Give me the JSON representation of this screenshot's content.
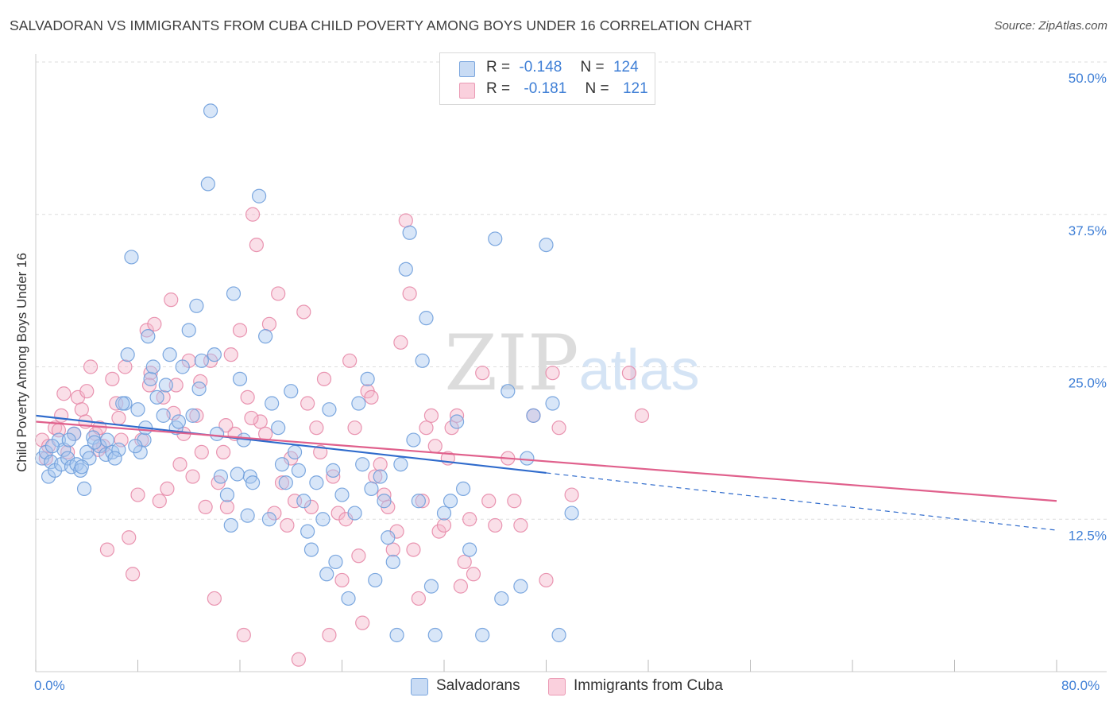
{
  "title": "SALVADORAN VS IMMIGRANTS FROM CUBA CHILD POVERTY AMONG BOYS UNDER 16 CORRELATION CHART",
  "source": "Source: ZipAtlas.com",
  "watermark": "ZIPatlas",
  "legend": {
    "rows": [
      {
        "r_label": "R =",
        "r_value": "-0.148",
        "n_label": "N =",
        "n_value": "124",
        "color": "#a9c8ef"
      },
      {
        "r_label": "R =",
        "r_value": "-0.181",
        "n_label": "N =",
        "n_value": "121",
        "color": "#f4b8cb"
      }
    ]
  },
  "bottom_legend": {
    "series1": "Salvadorans",
    "series2": "Immigrants from Cuba"
  },
  "colors": {
    "blue_fill": "#a9c8ef",
    "blue_stroke": "#6f9fdc",
    "blue_line": "#2f6bcc",
    "pink_fill": "#f4b8cb",
    "pink_stroke": "#e78aa8",
    "pink_line": "#e0608c",
    "tick_label": "#3f7fd6"
  },
  "chart_data": {
    "type": "scatter",
    "title": "SALVADORAN VS IMMIGRANTS FROM CUBA CHILD POVERTY AMONG BOYS UNDER 16 CORRELATION CHART",
    "xlabel": "",
    "ylabel": "Child Poverty Among Boys Under 16",
    "xlim": [
      0,
      80
    ],
    "ylim": [
      0,
      50
    ],
    "x_tick_labels": [
      "0.0%",
      "80.0%"
    ],
    "y_ticks": [
      12.5,
      25.0,
      37.5,
      50.0
    ],
    "y_tick_labels": [
      "12.5%",
      "25.0%",
      "37.5%",
      "50.0%"
    ],
    "grid": true,
    "legend_position": "top-center",
    "series": [
      {
        "name": "Salvadorans",
        "r": -0.148,
        "n": 124,
        "trend": {
          "x0": 0,
          "y0": 21.0,
          "x1": 40,
          "y1": 16.3,
          "dashed_to_x": 80,
          "dashed_to_y": 11.6
        },
        "points": [
          [
            0.5,
            17.5
          ],
          [
            0.8,
            18
          ],
          [
            1,
            16
          ],
          [
            1.2,
            17.2
          ],
          [
            1.5,
            16.5
          ],
          [
            1.8,
            19
          ],
          [
            2,
            17
          ],
          [
            2.2,
            18.2
          ],
          [
            2.5,
            17.5
          ],
          [
            2.8,
            16.8
          ],
          [
            3,
            19.5
          ],
          [
            3.2,
            17
          ],
          [
            3.5,
            16.5
          ],
          [
            3.8,
            15
          ],
          [
            4,
            18
          ],
          [
            4.2,
            17.5
          ],
          [
            4.5,
            19.2
          ],
          [
            5,
            18.5
          ],
          [
            5.5,
            17.8
          ],
          [
            6,
            18
          ],
          [
            6.5,
            18.2
          ],
          [
            7,
            22
          ],
          [
            7.2,
            26
          ],
          [
            7.5,
            34
          ],
          [
            8,
            21.5
          ],
          [
            8.2,
            18
          ],
          [
            8.5,
            19
          ],
          [
            8.8,
            27.5
          ],
          [
            9,
            24
          ],
          [
            9.5,
            22.5
          ],
          [
            10,
            21
          ],
          [
            10.5,
            26
          ],
          [
            11,
            20
          ],
          [
            11.5,
            25
          ],
          [
            12,
            28
          ],
          [
            12.3,
            21
          ],
          [
            12.6,
            30
          ],
          [
            13,
            25.5
          ],
          [
            13.5,
            40
          ],
          [
            13.7,
            46
          ],
          [
            14,
            26
          ],
          [
            14.5,
            16
          ],
          [
            15,
            14.5
          ],
          [
            15.3,
            12
          ],
          [
            15.5,
            31
          ],
          [
            16,
            24
          ],
          [
            16.3,
            19
          ],
          [
            16.8,
            16
          ],
          [
            17,
            15.5
          ],
          [
            17.5,
            39
          ],
          [
            18,
            27.5
          ],
          [
            18.3,
            12.5
          ],
          [
            18.5,
            22
          ],
          [
            19,
            20
          ],
          [
            19.3,
            17
          ],
          [
            19.6,
            15.5
          ],
          [
            20,
            23
          ],
          [
            20.3,
            18
          ],
          [
            20.6,
            16.5
          ],
          [
            21,
            14
          ],
          [
            21.3,
            11.5
          ],
          [
            21.6,
            10
          ],
          [
            22,
            15.5
          ],
          [
            22.5,
            12.5
          ],
          [
            22.8,
            8
          ],
          [
            23,
            21.5
          ],
          [
            23.3,
            16.5
          ],
          [
            23.5,
            9
          ],
          [
            24,
            14.5
          ],
          [
            24.5,
            6
          ],
          [
            25,
            13
          ],
          [
            25.3,
            22
          ],
          [
            25.6,
            17
          ],
          [
            26,
            24
          ],
          [
            26.3,
            15
          ],
          [
            26.6,
            7.5
          ],
          [
            27,
            16
          ],
          [
            27.3,
            14
          ],
          [
            27.6,
            11
          ],
          [
            28,
            9
          ],
          [
            28.3,
            3
          ],
          [
            28.6,
            17
          ],
          [
            29,
            33
          ],
          [
            29.3,
            36
          ],
          [
            29.6,
            19
          ],
          [
            30,
            14
          ],
          [
            30.3,
            25.5
          ],
          [
            30.6,
            29
          ],
          [
            31,
            7
          ],
          [
            31.3,
            3
          ],
          [
            32,
            13
          ],
          [
            32.5,
            14
          ],
          [
            33,
            20.5
          ],
          [
            33.5,
            15
          ],
          [
            34,
            10
          ],
          [
            35,
            3
          ],
          [
            36,
            35.5
          ],
          [
            36.5,
            6
          ],
          [
            37,
            23
          ],
          [
            38,
            7
          ],
          [
            38.5,
            17.5
          ],
          [
            39,
            21
          ],
          [
            40,
            35
          ],
          [
            40.5,
            22
          ],
          [
            41,
            3
          ],
          [
            42,
            13
          ],
          [
            1.3,
            18.5
          ],
          [
            2.6,
            19
          ],
          [
            3.6,
            16.8
          ],
          [
            4.6,
            18.8
          ],
          [
            5.6,
            19
          ],
          [
            6.2,
            17.5
          ],
          [
            6.8,
            22
          ],
          [
            7.8,
            18.5
          ],
          [
            8.6,
            20
          ],
          [
            9.2,
            25
          ],
          [
            10.2,
            23.5
          ],
          [
            11.2,
            20.5
          ],
          [
            12.8,
            23.2
          ],
          [
            14.2,
            19.5
          ],
          [
            15.8,
            16.2
          ],
          [
            16.6,
            12.8
          ]
        ]
      },
      {
        "name": "Immigrants from Cuba",
        "r": -0.181,
        "n": 121,
        "trend": {
          "x0": 0,
          "y0": 20.5,
          "x1": 80,
          "y1": 14.0
        },
        "points": [
          [
            0.5,
            19
          ],
          [
            0.8,
            17.5
          ],
          [
            1,
            18.5
          ],
          [
            1.5,
            20
          ],
          [
            2,
            21
          ],
          [
            2.5,
            18
          ],
          [
            3,
            19.5
          ],
          [
            3.3,
            22.5
          ],
          [
            3.6,
            21.5
          ],
          [
            4,
            23
          ],
          [
            4.3,
            25
          ],
          [
            4.7,
            19.5
          ],
          [
            5,
            20
          ],
          [
            5.3,
            18.5
          ],
          [
            5.6,
            10
          ],
          [
            6,
            24
          ],
          [
            6.3,
            22
          ],
          [
            6.7,
            19
          ],
          [
            7,
            25
          ],
          [
            7.3,
            11
          ],
          [
            7.6,
            8
          ],
          [
            8,
            14.5
          ],
          [
            8.3,
            19
          ],
          [
            8.7,
            28
          ],
          [
            9,
            24.5
          ],
          [
            9.3,
            28.5
          ],
          [
            9.7,
            14
          ],
          [
            10,
            22.5
          ],
          [
            10.3,
            15
          ],
          [
            10.6,
            30.5
          ],
          [
            11,
            23.5
          ],
          [
            11.3,
            17
          ],
          [
            11.6,
            19.5
          ],
          [
            12,
            25.5
          ],
          [
            12.3,
            16
          ],
          [
            12.6,
            21
          ],
          [
            13,
            18
          ],
          [
            13.3,
            13.5
          ],
          [
            13.7,
            25.5
          ],
          [
            14,
            6
          ],
          [
            14.3,
            15.5
          ],
          [
            14.7,
            18
          ],
          [
            15,
            13.5
          ],
          [
            15.3,
            26
          ],
          [
            15.6,
            19.5
          ],
          [
            16,
            28
          ],
          [
            16.3,
            3
          ],
          [
            16.6,
            22.5
          ],
          [
            17,
            37.5
          ],
          [
            17.3,
            35
          ],
          [
            17.6,
            20.5
          ],
          [
            18,
            19.5
          ],
          [
            18.3,
            28.5
          ],
          [
            18.7,
            13
          ],
          [
            19,
            31
          ],
          [
            19.3,
            15.5
          ],
          [
            19.7,
            12
          ],
          [
            20,
            17.5
          ],
          [
            20.3,
            14
          ],
          [
            20.6,
            1
          ],
          [
            21,
            29.5
          ],
          [
            21.3,
            22
          ],
          [
            21.6,
            13.5
          ],
          [
            22,
            20
          ],
          [
            22.3,
            18
          ],
          [
            22.6,
            24
          ],
          [
            23,
            3
          ],
          [
            23.3,
            16
          ],
          [
            23.7,
            13
          ],
          [
            24,
            7.5
          ],
          [
            24.3,
            12.5
          ],
          [
            24.6,
            25.5
          ],
          [
            25,
            20
          ],
          [
            25.3,
            9.5
          ],
          [
            25.6,
            4
          ],
          [
            26,
            23
          ],
          [
            26.3,
            22.5
          ],
          [
            26.6,
            16
          ],
          [
            27,
            17
          ],
          [
            27.3,
            14.5
          ],
          [
            27.6,
            13.5
          ],
          [
            28,
            10
          ],
          [
            28.3,
            11.5
          ],
          [
            28.6,
            27
          ],
          [
            29,
            37
          ],
          [
            29.3,
            31
          ],
          [
            29.6,
            10
          ],
          [
            30,
            6
          ],
          [
            30.3,
            14
          ],
          [
            30.6,
            20
          ],
          [
            31,
            21
          ],
          [
            31.3,
            18.5
          ],
          [
            31.6,
            11.5
          ],
          [
            32,
            12
          ],
          [
            32.3,
            17.5
          ],
          [
            32.6,
            20
          ],
          [
            33,
            21
          ],
          [
            33.3,
            7
          ],
          [
            33.6,
            9
          ],
          [
            34,
            12.5
          ],
          [
            34.3,
            8
          ],
          [
            35,
            24.5
          ],
          [
            35.5,
            14
          ],
          [
            36,
            12
          ],
          [
            37,
            17.5
          ],
          [
            37.5,
            14
          ],
          [
            38,
            12
          ],
          [
            39,
            21
          ],
          [
            40,
            7.5
          ],
          [
            40.5,
            24.5
          ],
          [
            41,
            20
          ],
          [
            42,
            14.5
          ],
          [
            46.5,
            24.5
          ],
          [
            47.5,
            21
          ],
          [
            1.8,
            19.8
          ],
          [
            2.2,
            22.8
          ],
          [
            3.9,
            20.5
          ],
          [
            4.9,
            18.2
          ],
          [
            6.5,
            20.8
          ],
          [
            8.9,
            23.5
          ],
          [
            10.8,
            21.2
          ],
          [
            12.9,
            23.8
          ],
          [
            14.9,
            20.2
          ],
          [
            16.9,
            20.8
          ]
        ]
      }
    ]
  }
}
